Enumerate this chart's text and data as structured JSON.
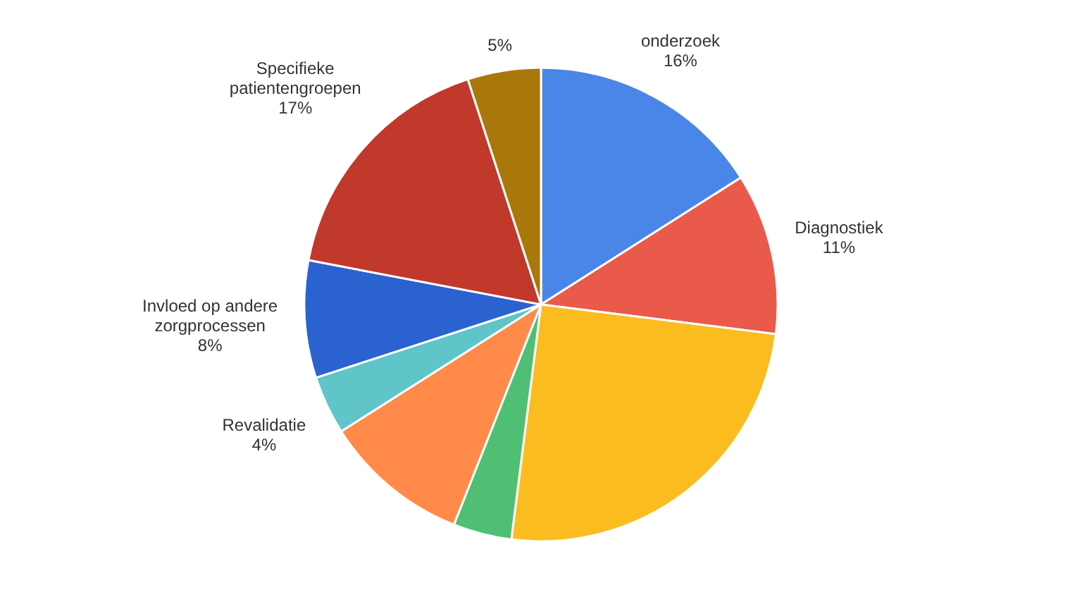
{
  "chart_data": {
    "type": "pie",
    "categories": [
      "onderzoek",
      "Diagnostiek",
      null,
      null,
      null,
      "Revalidatie",
      "Invloed op andere zorgprocessen",
      "Specifieke patientengroepen",
      null
    ],
    "values": [
      16,
      11,
      25,
      4,
      10,
      4,
      8,
      17,
      5
    ],
    "value_labels": [
      "16%",
      "11%",
      null,
      null,
      null,
      "4%",
      "8%",
      "17%",
      "5%"
    ],
    "colors": [
      "#4a86e8",
      "#ea5a4b",
      "#fbbc20",
      "#4fc073",
      "#ff8a4a",
      "#5fc5c9",
      "#2a62d0",
      "#c0392b",
      "#a8780a"
    ]
  }
}
